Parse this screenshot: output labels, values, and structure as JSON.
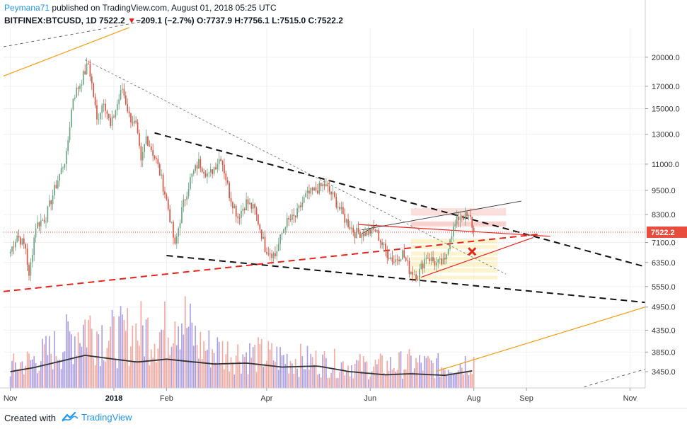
{
  "header": {
    "author": "Peymana71",
    "published_text": "published on TradingView.com, August 01, 2018 05:25 UTC",
    "symbol": "BITFINEX:BTCUSD, 1D",
    "last": "7522.2",
    "change_arrow": "▼",
    "change": "−209.1 (−2.7%)",
    "o_label": "O:",
    "o_value": "7737.9",
    "h_label": "H:",
    "h_value": "7756.1",
    "l_label": "L:",
    "l_value": "7515.0",
    "c_label": "C:",
    "c_value": "7522.2"
  },
  "footer": {
    "created_with": "Created with",
    "brand": "TradingView"
  },
  "colors": {
    "up": "#6ba583",
    "down": "#d75442",
    "vol_up": "#9c8fe0",
    "vol_down": "#f29a8f",
    "price_tag": "#e84c3d",
    "accent": "#2196f3"
  },
  "chart_data": {
    "type": "candlestick",
    "scale": "log",
    "symbol": "BITFINEX:BTCUSD",
    "interval": "1D",
    "last_price": "7522.2",
    "y_ticks": [
      "20000.0",
      "17000.0",
      "15000.0",
      "13000.0",
      "11000.0",
      "9500.0",
      "8300.0",
      "7100.0",
      "6350.0",
      "5550.0",
      "4950.0",
      "4350.0",
      "3850.0",
      "3450.0"
    ],
    "x_ticks": [
      "Nov",
      "2018",
      "Feb",
      "Apr",
      "Jun",
      "Aug",
      "Sep",
      "Nov"
    ],
    "price_path": [
      [
        "2017-11-01",
        6750
      ],
      [
        "2017-11-05",
        7400
      ],
      [
        "2017-11-10",
        6900
      ],
      [
        "2017-11-12",
        5800
      ],
      [
        "2017-11-16",
        7800
      ],
      [
        "2017-11-22",
        8200
      ],
      [
        "2017-11-28",
        9800
      ],
      [
        "2017-12-04",
        11500
      ],
      [
        "2017-12-08",
        16000
      ],
      [
        "2017-12-12",
        17200
      ],
      [
        "2017-12-17",
        19300
      ],
      [
        "2017-12-22",
        14000
      ],
      [
        "2017-12-26",
        15800
      ],
      [
        "2017-12-30",
        13500
      ],
      [
        "2018-01-06",
        16800
      ],
      [
        "2018-01-10",
        14400
      ],
      [
        "2018-01-14",
        13600
      ],
      [
        "2018-01-17",
        11000
      ],
      [
        "2018-01-20",
        12800
      ],
      [
        "2018-01-26",
        11200
      ],
      [
        "2018-02-01",
        9000
      ],
      [
        "2018-02-06",
        6900
      ],
      [
        "2018-02-10",
        8500
      ],
      [
        "2018-02-15",
        10100
      ],
      [
        "2018-02-20",
        11100
      ],
      [
        "2018-02-26",
        10300
      ],
      [
        "2018-03-05",
        11500
      ],
      [
        "2018-03-10",
        9300
      ],
      [
        "2018-03-15",
        8200
      ],
      [
        "2018-03-20",
        8900
      ],
      [
        "2018-03-25",
        8500
      ],
      [
        "2018-03-31",
        6900
      ],
      [
        "2018-04-06",
        6600
      ],
      [
        "2018-04-12",
        7900
      ],
      [
        "2018-04-18",
        8200
      ],
      [
        "2018-04-24",
        9200
      ],
      [
        "2018-05-05",
        9800
      ],
      [
        "2018-05-10",
        9200
      ],
      [
        "2018-05-17",
        8100
      ],
      [
        "2018-05-23",
        7500
      ],
      [
        "2018-05-29",
        7500
      ],
      [
        "2018-06-04",
        7600
      ],
      [
        "2018-06-10",
        6750
      ],
      [
        "2018-06-15",
        6400
      ],
      [
        "2018-06-20",
        6700
      ],
      [
        "2018-06-24",
        6100
      ],
      [
        "2018-06-29",
        5900
      ],
      [
        "2018-07-04",
        6600
      ],
      [
        "2018-07-10",
        6300
      ],
      [
        "2018-07-15",
        6350
      ],
      [
        "2018-07-18",
        7350
      ],
      [
        "2018-07-24",
        8300
      ],
      [
        "2018-07-27",
        8200
      ],
      [
        "2018-07-30",
        8100
      ],
      [
        "2018-08-01",
        7522
      ]
    ],
    "volume_path": [
      [
        "2017-11-01",
        3
      ],
      [
        "2017-11-15",
        4
      ],
      [
        "2017-12-01",
        6
      ],
      [
        "2017-12-15",
        9
      ],
      [
        "2018-01-01",
        7
      ],
      [
        "2018-01-15",
        8
      ],
      [
        "2018-02-01",
        8
      ],
      [
        "2018-02-06",
        12
      ],
      [
        "2018-02-20",
        6
      ],
      [
        "2018-03-10",
        5
      ],
      [
        "2018-04-01",
        4.5
      ],
      [
        "2018-04-20",
        4
      ],
      [
        "2018-05-10",
        3.5
      ],
      [
        "2018-06-01",
        3
      ],
      [
        "2018-06-25",
        3.5
      ],
      [
        "2018-07-15",
        3
      ],
      [
        "2018-08-01",
        4
      ]
    ],
    "volume_ma_path": [
      [
        "2017-11-01",
        3450
      ],
      [
        "2017-11-15",
        3530
      ],
      [
        "2017-12-01",
        3660
      ],
      [
        "2017-12-15",
        3780
      ],
      [
        "2018-01-01",
        3700
      ],
      [
        "2018-01-15",
        3640
      ],
      [
        "2018-02-01",
        3700
      ],
      [
        "2018-02-15",
        3650
      ],
      [
        "2018-03-01",
        3600
      ],
      [
        "2018-03-20",
        3620
      ],
      [
        "2018-04-10",
        3540
      ],
      [
        "2018-05-01",
        3560
      ],
      [
        "2018-05-20",
        3450
      ],
      [
        "2018-06-10",
        3390
      ],
      [
        "2018-06-25",
        3410
      ],
      [
        "2018-07-15",
        3380
      ],
      [
        "2018-08-01",
        3470
      ]
    ],
    "x_range": [
      "2017-10-28",
      "2018-11-10"
    ],
    "y_range": [
      3150,
      23500
    ]
  }
}
